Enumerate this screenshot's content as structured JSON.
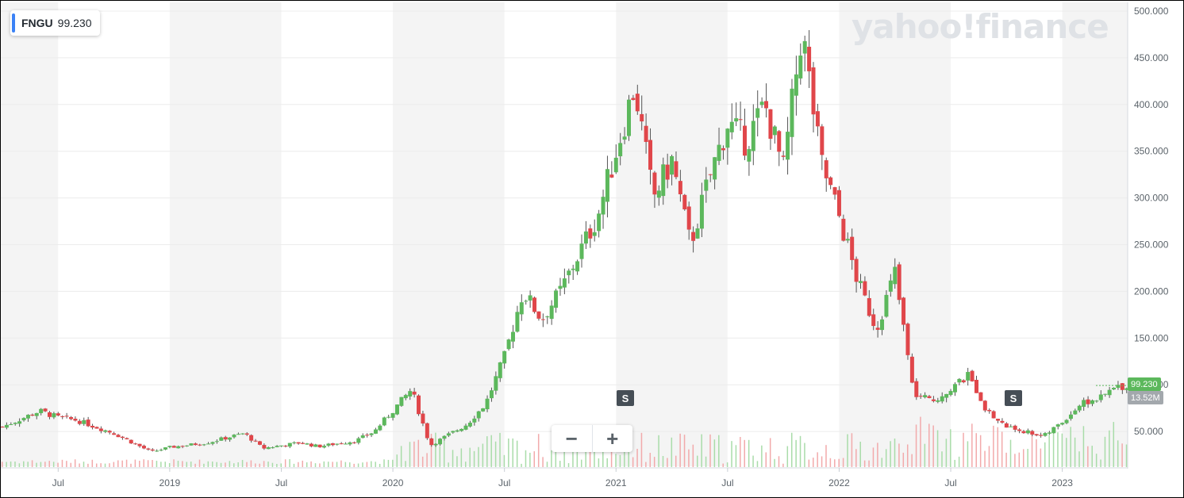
{
  "ticker": {
    "symbol": "FNGU",
    "price": "99.230"
  },
  "watermark": "yahoo!finance",
  "zoom": {
    "minus": "−",
    "plus": "+"
  },
  "split_badge": "S",
  "price_tag": "99.230",
  "volume_tag": "13.52M",
  "colors": {
    "up": "#5cb85c",
    "down": "#e0464a",
    "band": "#f4f4f4",
    "grid": "#ececec",
    "axis_text": "#5b636a",
    "price_tag": "#5cb85c",
    "volume_tag": "#a3a8ad"
  },
  "chart_data": {
    "type": "candlestick",
    "interval": "weekly",
    "ylim": [
      0,
      500
    ],
    "y_ticks": [
      "50.000",
      "100.000",
      "150.000",
      "200.000",
      "250.000",
      "300.000",
      "350.000",
      "400.000",
      "450.000",
      "500.000"
    ],
    "x_ticks": [
      "Jul",
      "2019",
      "Jul",
      "2020",
      "Jul",
      "2021",
      "Jul",
      "2022",
      "Jul",
      "2023"
    ],
    "grid": true,
    "last_price": 99.23,
    "last_volume": "13.52M",
    "split_events": [
      "2021",
      "2022"
    ],
    "price_path": [
      [
        "2018-04",
        55
      ],
      [
        "2018-06",
        72
      ],
      [
        "2018-07",
        65
      ],
      [
        "2018-08",
        62
      ],
      [
        "2018-10",
        48
      ],
      [
        "2018-12",
        28
      ],
      [
        "2019-01",
        33
      ],
      [
        "2019-03",
        38
      ],
      [
        "2019-05",
        48
      ],
      [
        "2019-06",
        32
      ],
      [
        "2019-08",
        38
      ],
      [
        "2019-09",
        34
      ],
      [
        "2019-11",
        40
      ],
      [
        "2019-12",
        50
      ],
      [
        "2020-02",
        95
      ],
      [
        "2020-03",
        35
      ],
      [
        "2020-05",
        58
      ],
      [
        "2020-06",
        80
      ],
      [
        "2020-07",
        130
      ],
      [
        "2020-08",
        200
      ],
      [
        "2020-09",
        170
      ],
      [
        "2020-10",
        200
      ],
      [
        "2020-12",
        280
      ],
      [
        "2021-02",
        420
      ],
      [
        "2021-03",
        300
      ],
      [
        "2021-04",
        340
      ],
      [
        "2021-05",
        250
      ],
      [
        "2021-06",
        320
      ],
      [
        "2021-07",
        380
      ],
      [
        "2021-08",
        360
      ],
      [
        "2021-09",
        400
      ],
      [
        "2021-10",
        330
      ],
      [
        "2021-11",
        480
      ],
      [
        "2021-12",
        340
      ],
      [
        "2022-01",
        280
      ],
      [
        "2022-02",
        210
      ],
      [
        "2022-03",
        160
      ],
      [
        "2022-04",
        220
      ],
      [
        "2022-05",
        90
      ],
      [
        "2022-06",
        82
      ],
      [
        "2022-08",
        110
      ],
      [
        "2022-09",
        70
      ],
      [
        "2022-10",
        55
      ],
      [
        "2022-12",
        45
      ],
      [
        "2023-01",
        60
      ],
      [
        "2023-02",
        80
      ],
      [
        "2023-03",
        85
      ],
      [
        "2023-04",
        99
      ]
    ]
  }
}
